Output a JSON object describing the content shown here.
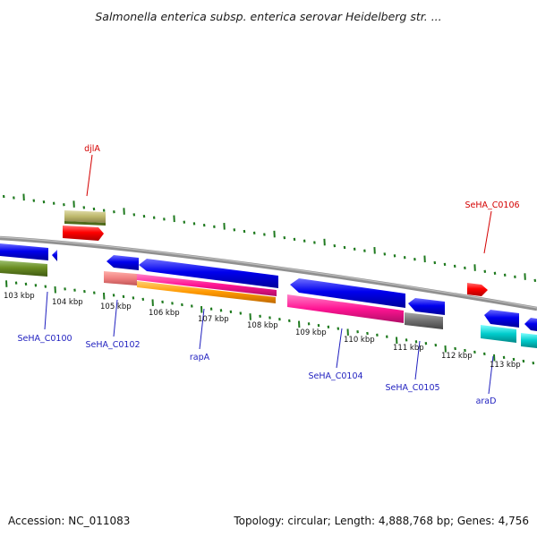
{
  "map": {
    "title": "Salmonella enterica subsp. enterica serovar Heidelberg str. ...",
    "accession": "Accession: NC_011083",
    "topology": "Topology: circular; Length: 4,888,768 bp; Genes: 4,756"
  },
  "scale_labels": [
    "103 kbp",
    "104 kbp",
    "105 kbp",
    "106 kbp",
    "107 kbp",
    "108 kbp",
    "109 kbp",
    "110 kbp",
    "111 kbp",
    "112 kbp",
    "113 kbp"
  ],
  "gene_labels": {
    "djlA": "djlA",
    "SeHA_C0106": "SeHA_C0106",
    "SeHA_C0100": "SeHA_C0100",
    "SeHA_C0102": "SeHA_C0102",
    "rapA": "rapA",
    "SeHA_C0104": "SeHA_C0104",
    "SeHA_C0105": "SeHA_C0105",
    "araD": "araD"
  },
  "colors": {
    "forward_label": "#d40000",
    "reverse_label": "#1f1fbf",
    "backbone": "#808080",
    "ticks": "#1f7a1f"
  }
}
